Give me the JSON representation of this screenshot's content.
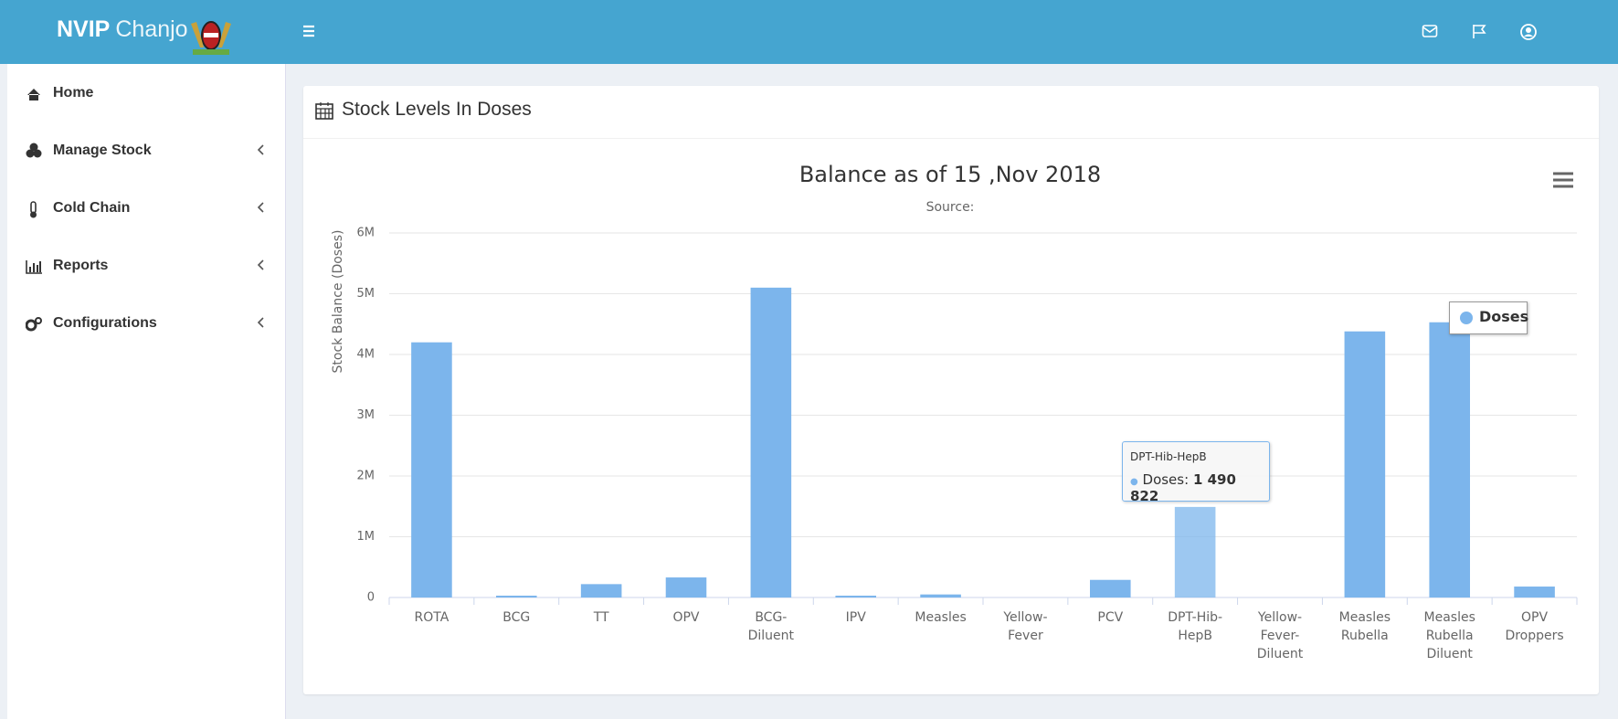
{
  "header": {
    "brand": "NVIP",
    "brand_sub": "Chanjo"
  },
  "sidebar": {
    "items": [
      "Home",
      "Manage Stock",
      "Cold Chain",
      "Reports",
      "Configurations"
    ]
  },
  "panel": {
    "title": "Stock Levels In Doses"
  },
  "chart_data": {
    "type": "bar",
    "title": "Balance as of 15 ,Nov 2018",
    "subtitle": "Source:",
    "y_label": "Stock Balance (Doses)",
    "categories": [
      "ROTA",
      "BCG",
      "TT",
      "OPV",
      "BCG-Diluent",
      "IPV",
      "Measles",
      "Yellow-Fever",
      "PCV",
      "DPT-Hib-HepB",
      "Yellow-Fever-Diluent",
      "Measles Rubella",
      "Measles Rubella Diluent",
      "OPV Droppers"
    ],
    "series": [
      {
        "name": "Doses",
        "color": "#7cb5ec",
        "values": [
          4200000,
          30000,
          220000,
          330000,
          5100000,
          30000,
          50000,
          0,
          290000,
          1490822,
          0,
          4380000,
          4530000,
          180000
        ]
      }
    ],
    "ylim": [
      0,
      6000000
    ],
    "yticks": [
      0,
      {
        "value": 1000000,
        "label": "1M"
      },
      {
        "value": 2000000,
        "label": "2M"
      },
      {
        "value": 3000000,
        "label": "3M"
      },
      {
        "value": 4000000,
        "label": "4M"
      },
      {
        "value": 5000000,
        "label": "5M"
      },
      {
        "value": 6000000,
        "label": "6M"
      }
    ],
    "grid": true,
    "legend": "top-right",
    "tooltip": {
      "title": "DPT-Hib-HepB",
      "label": "Doses:",
      "value": "1 490 822"
    }
  }
}
